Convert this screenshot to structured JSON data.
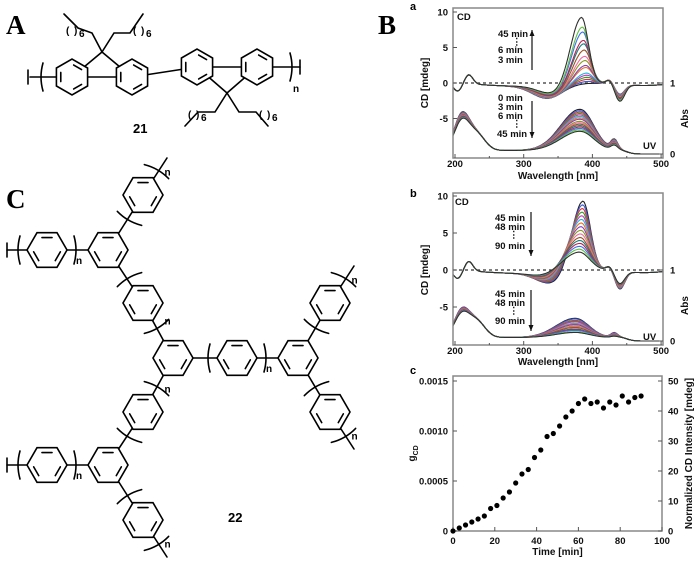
{
  "figure": {
    "panel_labels": {
      "A": "A",
      "B": "B",
      "C": "C"
    },
    "subpanel_labels": {
      "a": "a",
      "b": "b",
      "c": "c"
    },
    "structure_21": {
      "label": "21",
      "repeat": "n",
      "chain_length": "6"
    },
    "structure_22": {
      "label": "22",
      "repeat": "n"
    }
  },
  "colors": {
    "curves": [
      "#222222",
      "#3a5bd9",
      "#e03030",
      "#2aa02a",
      "#d030c0",
      "#20b8d8",
      "#f07020",
      "#8040c0",
      "#8a9a20",
      "#f06aa0",
      "#a05020",
      "#108080",
      "#c02050",
      "#4070f0",
      "#60c040",
      "#303030"
    ],
    "points": "#000000",
    "frame": "#888888"
  },
  "chart_data": [
    {
      "panel": "a",
      "type": "line",
      "xlabel": "Wavelength [nm]",
      "ylabel": "CD [mdeg]",
      "y2label": "Abs",
      "xlim": [
        200,
        500
      ],
      "ylim": [
        -10.4,
        10
      ],
      "y2lim": [
        0,
        2
      ],
      "xticks": [
        "200",
        "300",
        "400",
        "500"
      ],
      "yticks": [
        "10",
        "5",
        "0",
        "-5"
      ],
      "y2ticks": [
        "1",
        "0"
      ],
      "cd_label": "CD",
      "uv_label": "UV",
      "cd_annotation": [
        "45 min",
        "⋮",
        "6 min",
        "3 min"
      ],
      "uv_annotation": [
        "0 min",
        "3 min",
        "6 min",
        "⋮",
        "45 min"
      ],
      "series": [
        {
          "time_min": 0,
          "cd_peak_mdeg": 0.0,
          "uv_peak_abs": 0.58
        },
        {
          "time_min": 3,
          "cd_peak_mdeg": 0.3,
          "uv_peak_abs": 0.56
        },
        {
          "time_min": 6,
          "cd_peak_mdeg": 0.6,
          "uv_peak_abs": 0.54
        },
        {
          "time_min": 9,
          "cd_peak_mdeg": 0.9,
          "uv_peak_abs": 0.52
        },
        {
          "time_min": 12,
          "cd_peak_mdeg": 1.2,
          "uv_peak_abs": 0.5
        },
        {
          "time_min": 15,
          "cd_peak_mdeg": 1.5,
          "uv_peak_abs": 0.48
        },
        {
          "time_min": 18,
          "cd_peak_mdeg": 2.3,
          "uv_peak_abs": 0.46
        },
        {
          "time_min": 21,
          "cd_peak_mdeg": 2.6,
          "uv_peak_abs": 0.44
        },
        {
          "time_min": 24,
          "cd_peak_mdeg": 3.3,
          "uv_peak_abs": 0.41
        },
        {
          "time_min": 27,
          "cd_peak_mdeg": 3.9,
          "uv_peak_abs": 0.39
        },
        {
          "time_min": 30,
          "cd_peak_mdeg": 4.8,
          "uv_peak_abs": 0.37
        },
        {
          "time_min": 33,
          "cd_peak_mdeg": 5.7,
          "uv_peak_abs": 0.35
        },
        {
          "time_min": 36,
          "cd_peak_mdeg": 6.2,
          "uv_peak_abs": 0.33
        },
        {
          "time_min": 39,
          "cd_peak_mdeg": 7.4,
          "uv_peak_abs": 0.31
        },
        {
          "time_min": 42,
          "cd_peak_mdeg": 8.1,
          "uv_peak_abs": 0.29
        },
        {
          "time_min": 45,
          "cd_peak_mdeg": 9.5,
          "uv_peak_abs": 0.27
        }
      ]
    },
    {
      "panel": "b",
      "type": "line",
      "xlabel": "Wavelength [nm]",
      "ylabel": "CD [mdeg]",
      "y2label": "Abs",
      "xlim": [
        200,
        500
      ],
      "ylim": [
        -10.2,
        10
      ],
      "y2lim": [
        0,
        2
      ],
      "xticks": [
        "200",
        "300",
        "400",
        "500"
      ],
      "yticks": [
        "10",
        "5",
        "0",
        "-5"
      ],
      "y2ticks": [
        "1",
        "0"
      ],
      "cd_label": "CD",
      "uv_label": "UV",
      "cd_annotation": [
        "45 min",
        "48 min",
        "⋮",
        "90 min"
      ],
      "uv_annotation": [
        "45 min",
        "48 min",
        "⋮",
        "90 min"
      ],
      "series": [
        {
          "time_min": 45,
          "cd_peak_mdeg": 9.5,
          "uv_peak_abs": 0.27
        },
        {
          "time_min": 48,
          "cd_peak_mdeg": 9.0,
          "uv_peak_abs": 0.26
        },
        {
          "time_min": 51,
          "cd_peak_mdeg": 8.5,
          "uv_peak_abs": 0.24
        },
        {
          "time_min": 54,
          "cd_peak_mdeg": 8.0,
          "uv_peak_abs": 0.23
        },
        {
          "time_min": 57,
          "cd_peak_mdeg": 7.5,
          "uv_peak_abs": 0.22
        },
        {
          "time_min": 60,
          "cd_peak_mdeg": 7.0,
          "uv_peak_abs": 0.2
        },
        {
          "time_min": 63,
          "cd_peak_mdeg": 6.5,
          "uv_peak_abs": 0.19
        },
        {
          "time_min": 66,
          "cd_peak_mdeg": 6.0,
          "uv_peak_abs": 0.18
        },
        {
          "time_min": 69,
          "cd_peak_mdeg": 5.5,
          "uv_peak_abs": 0.16
        },
        {
          "time_min": 72,
          "cd_peak_mdeg": 5.0,
          "uv_peak_abs": 0.15
        },
        {
          "time_min": 75,
          "cd_peak_mdeg": 4.5,
          "uv_peak_abs": 0.14
        },
        {
          "time_min": 78,
          "cd_peak_mdeg": 4.1,
          "uv_peak_abs": 0.12
        },
        {
          "time_min": 81,
          "cd_peak_mdeg": 3.7,
          "uv_peak_abs": 0.11
        },
        {
          "time_min": 84,
          "cd_peak_mdeg": 3.3,
          "uv_peak_abs": 0.1
        },
        {
          "time_min": 87,
          "cd_peak_mdeg": 2.9,
          "uv_peak_abs": 0.08
        },
        {
          "time_min": 90,
          "cd_peak_mdeg": 2.5,
          "uv_peak_abs": 0.07
        }
      ]
    },
    {
      "panel": "c",
      "type": "scatter",
      "xlabel": "Time [min]",
      "ylabel_main": "g",
      "ylabel_sub": "CD",
      "y2label": "Normalized CD Intensity [mdeg]",
      "xlim": [
        0,
        100
      ],
      "ylim": [
        0,
        0.0015
      ],
      "y2lim": [
        0,
        50
      ],
      "xticks": [
        "0",
        "20",
        "40",
        "60",
        "80",
        "100"
      ],
      "yticks": [
        "0.0015",
        "0.0010",
        "0.0005",
        "0"
      ],
      "y2ticks": [
        "50",
        "40",
        "30",
        "20",
        "10",
        "0"
      ],
      "x": [
        0,
        3,
        6,
        9,
        12,
        15,
        18,
        21,
        24,
        27,
        30,
        33,
        36,
        39,
        42,
        45,
        48,
        51,
        54,
        57,
        60,
        63,
        66,
        69,
        72,
        75,
        78,
        81,
        84,
        87,
        90
      ],
      "y_mdeg": [
        0,
        1,
        2,
        3,
        4,
        5,
        7.5,
        8.5,
        11,
        13,
        16,
        19,
        20.5,
        24.5,
        27,
        31.5,
        32.5,
        35,
        38,
        40,
        42.5,
        44,
        42.5,
        43,
        41,
        43,
        42,
        45,
        43,
        44.5,
        45
      ]
    }
  ]
}
